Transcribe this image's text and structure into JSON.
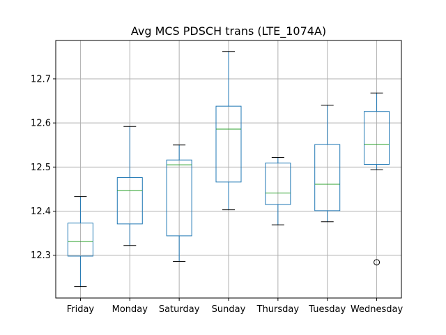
{
  "chart_data": {
    "type": "box",
    "title": "Avg MCS PDSCH trans (LTE_1074A)",
    "xlabel": "",
    "ylabel": "",
    "ylim": [
      12.203,
      12.787
    ],
    "yticks": [
      12.3,
      12.4,
      12.5,
      12.6,
      12.7
    ],
    "grid": true,
    "categories": [
      "Friday",
      "Monday",
      "Saturday",
      "Sunday",
      "Thursday",
      "Tuesday",
      "Wednesday"
    ],
    "boxes": [
      {
        "category": "Friday",
        "whisker_low": 12.229,
        "q1": 12.298,
        "median": 12.331,
        "q3": 12.373,
        "whisker_high": 12.433,
        "outliers": []
      },
      {
        "category": "Monday",
        "whisker_low": 12.322,
        "q1": 12.371,
        "median": 12.447,
        "q3": 12.476,
        "whisker_high": 12.592,
        "outliers": []
      },
      {
        "category": "Saturday",
        "whisker_low": 12.286,
        "q1": 12.344,
        "median": 12.505,
        "q3": 12.516,
        "whisker_high": 12.55,
        "outliers": []
      },
      {
        "category": "Sunday",
        "whisker_low": 12.403,
        "q1": 12.466,
        "median": 12.586,
        "q3": 12.638,
        "whisker_high": 12.762,
        "outliers": []
      },
      {
        "category": "Thursday",
        "whisker_low": 12.369,
        "q1": 12.415,
        "median": 12.441,
        "q3": 12.509,
        "whisker_high": 12.522,
        "outliers": []
      },
      {
        "category": "Tuesday",
        "whisker_low": 12.376,
        "q1": 12.401,
        "median": 12.461,
        "q3": 12.551,
        "whisker_high": 12.64,
        "outliers": []
      },
      {
        "category": "Wednesday",
        "whisker_low": 12.494,
        "q1": 12.506,
        "median": 12.551,
        "q3": 12.626,
        "whisker_high": 12.668,
        "outliers": [
          12.284
        ]
      }
    ],
    "colors": {
      "box": "#1f77b4",
      "median": "#2ca02c",
      "grid": "#b0b0b0",
      "whisker_cap": "#000000",
      "outlier": "#000000"
    }
  }
}
